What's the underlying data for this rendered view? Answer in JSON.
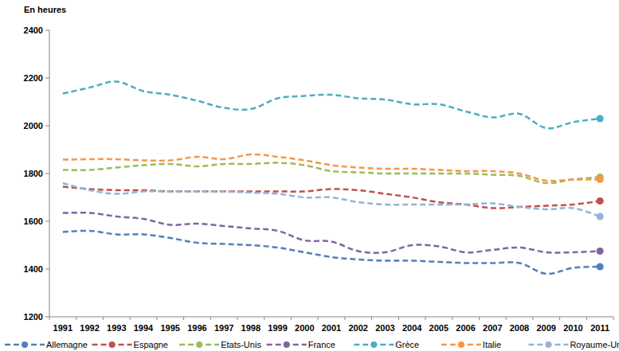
{
  "chart_data": {
    "type": "line",
    "ylabel": "En heures",
    "categories": [
      "1991",
      "1992",
      "1993",
      "1994",
      "1995",
      "1996",
      "1997",
      "1998",
      "1999",
      "2000",
      "2001",
      "2002",
      "2003",
      "2004",
      "2005",
      "2006",
      "2007",
      "2008",
      "2009",
      "2010",
      "2011"
    ],
    "series": [
      {
        "name": "Allemagne",
        "color": "#4f81bd",
        "values": [
          1555,
          1560,
          1545,
          1545,
          1530,
          1510,
          1505,
          1500,
          1490,
          1470,
          1450,
          1440,
          1435,
          1435,
          1430,
          1425,
          1425,
          1425,
          1380,
          1405,
          1410
        ]
      },
      {
        "name": "Espagne",
        "color": "#c0504d",
        "values": [
          1745,
          1735,
          1730,
          1730,
          1725,
          1725,
          1725,
          1725,
          1725,
          1725,
          1735,
          1730,
          1715,
          1700,
          1680,
          1670,
          1655,
          1660,
          1665,
          1670,
          1685
        ]
      },
      {
        "name": "Etats-Unis",
        "color": "#9bbb59",
        "values": [
          1815,
          1815,
          1825,
          1835,
          1840,
          1830,
          1840,
          1840,
          1845,
          1835,
          1810,
          1805,
          1800,
          1800,
          1800,
          1800,
          1795,
          1790,
          1760,
          1775,
          1785
        ]
      },
      {
        "name": "France",
        "color": "#8064a2",
        "values": [
          1635,
          1635,
          1620,
          1610,
          1585,
          1590,
          1580,
          1570,
          1560,
          1520,
          1515,
          1475,
          1470,
          1500,
          1495,
          1470,
          1480,
          1490,
          1470,
          1470,
          1475
        ]
      },
      {
        "name": "Grèce",
        "color": "#4bacc6",
        "values": [
          2135,
          2160,
          2185,
          2145,
          2130,
          2105,
          2075,
          2070,
          2115,
          2125,
          2130,
          2115,
          2110,
          2090,
          2090,
          2060,
          2035,
          2050,
          1990,
          2015,
          2030
        ]
      },
      {
        "name": "Italie",
        "color": "#f79646",
        "values": [
          1858,
          1860,
          1860,
          1855,
          1855,
          1870,
          1860,
          1880,
          1870,
          1855,
          1835,
          1825,
          1820,
          1820,
          1815,
          1810,
          1810,
          1800,
          1770,
          1775,
          1775
        ]
      },
      {
        "name": "Royaume-Uni",
        "color": "#95b3d7",
        "values": [
          1760,
          1730,
          1715,
          1725,
          1725,
          1725,
          1725,
          1720,
          1715,
          1700,
          1700,
          1680,
          1670,
          1670,
          1670,
          1670,
          1675,
          1660,
          1650,
          1655,
          1620
        ]
      }
    ],
    "ylim": [
      1200,
      2400
    ],
    "yticks": [
      1200,
      1400,
      1600,
      1800,
      2000,
      2200,
      2400
    ],
    "grid": false,
    "legend": "bottom",
    "marker": "circle",
    "line_style": "dashed"
  }
}
